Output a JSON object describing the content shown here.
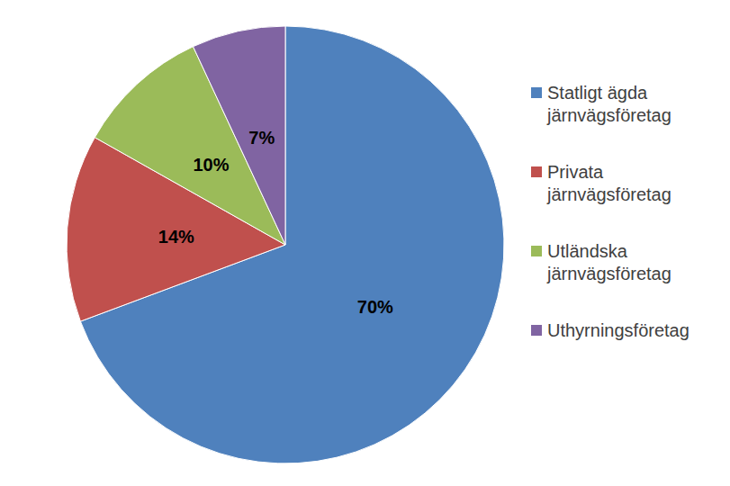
{
  "chart_data": {
    "type": "pie",
    "categories": [
      "Statligt ägda järnvägsföretag",
      "Privata järnvägsföretag",
      "Utländska järnvägsföretag",
      "Uthyrningsföretag"
    ],
    "values": [
      70,
      14,
      10,
      7
    ],
    "value_labels": [
      "70%",
      "14%",
      "10%",
      "7%"
    ],
    "colors": [
      "#4f81bd",
      "#c0504d",
      "#9bbb59",
      "#8064a2"
    ],
    "data_labels": true,
    "legend": "right"
  }
}
